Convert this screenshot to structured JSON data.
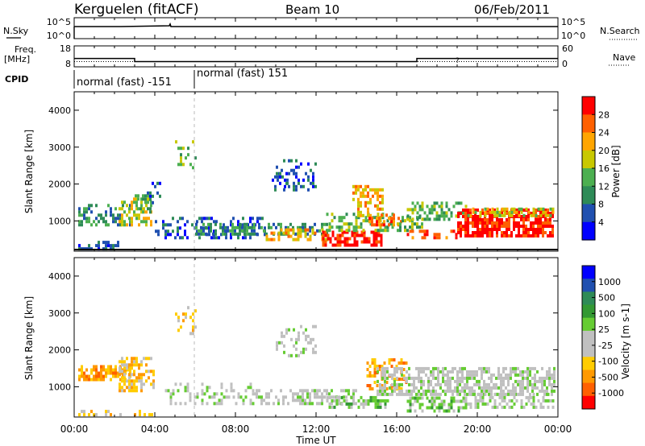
{
  "header": {
    "station": "Kerguelen (fitACF)",
    "beam": "Beam 10",
    "date": "06/Feb/2011"
  },
  "top_panels": {
    "nsky_label": "N.Sky",
    "nsearch_label": "N.Search",
    "freq_label": "Freq.",
    "freq_unit": "[MHz]",
    "nave_label": "Nave",
    "cpid_label": "CPID",
    "noise_ticks": [
      "10^5",
      "10^0"
    ],
    "freq_ticks": [
      "18",
      "8"
    ],
    "nave_ticks": [
      "60",
      "0"
    ],
    "cpid_segments": [
      "normal (fast) -151",
      "normal (fast) 151"
    ]
  },
  "colors": {
    "power_scale": [
      "#0000ff",
      "#2050b0",
      "#2e8b57",
      "#4caf50",
      "#c8c800",
      "#ffa500",
      "#ff6000",
      "#ff0000"
    ],
    "velocity_scale": [
      "#ff0000",
      "#ff6000",
      "#ff9900",
      "#ffcc00",
      "#c0c0c0",
      "#c0c0c0",
      "#66cc33",
      "#339933",
      "#2e8b57",
      "#2050b0",
      "#0000ff"
    ]
  },
  "chart_data": [
    {
      "type": "line",
      "panel": "noise",
      "series": [
        {
          "name": "N.Sky",
          "values": [
            1000,
            1000,
            1000,
            1000,
            1000,
            1000,
            1000
          ]
        },
        {
          "name": "N.Search",
          "values": [
            1000,
            1000,
            1000,
            1000,
            1000,
            1000,
            1000
          ]
        }
      ],
      "x": [
        "00:00",
        "04:00",
        "08:00",
        "12:00",
        "16:00",
        "20:00",
        "00:00"
      ],
      "ytick_labels": [
        "10^5",
        "10^0"
      ],
      "y2tick_labels": [
        "10^5",
        "10^0"
      ]
    },
    {
      "type": "line",
      "panel": "frequency",
      "series": [
        {
          "name": "Freq.",
          "points": [
            [
              0,
              12
            ],
            [
              3,
              12
            ],
            [
              3,
              10.5
            ],
            [
              17,
              10.5
            ],
            [
              17,
              12
            ],
            [
              24,
              12
            ]
          ]
        },
        {
          "name": "Nave",
          "points": [
            [
              0,
              15
            ],
            [
              24,
              15
            ]
          ]
        }
      ],
      "ylim": [
        8,
        18
      ],
      "y2lim": [
        0,
        60
      ]
    },
    {
      "type": "heatmap",
      "panel": "power",
      "ylabel": "Slant Range [km]",
      "colorbar_label": "Power [dB]",
      "colorbar_ticks": [
        "4",
        "8",
        "12",
        "16",
        "20",
        "24",
        "28"
      ],
      "yticks": [
        "1000",
        "2000",
        "3000",
        "4000"
      ],
      "xlim": [
        0,
        24
      ],
      "ylim": [
        180,
        4500
      ],
      "blobs": [
        {
          "t0": 0.2,
          "t1": 2.2,
          "r0": 200,
          "r1": 400,
          "level": 1,
          "d": 0.55
        },
        {
          "t0": 0.2,
          "t1": 2.8,
          "r0": 850,
          "r1": 1450,
          "level": 2,
          "d": 0.4
        },
        {
          "t0": 2.2,
          "t1": 3.8,
          "r0": 850,
          "r1": 1550,
          "level": 4,
          "d": 0.55
        },
        {
          "t0": 3.0,
          "t1": 3.8,
          "r0": 1200,
          "r1": 1700,
          "level": 3,
          "d": 0.45
        },
        {
          "t0": 3.6,
          "t1": 4.3,
          "r0": 1450,
          "r1": 2000,
          "level": 1,
          "d": 0.35
        },
        {
          "t0": 4.0,
          "t1": 9.5,
          "r0": 500,
          "r1": 1100,
          "level": 1,
          "d": 0.35
        },
        {
          "t0": 6.0,
          "t1": 12.5,
          "r0": 600,
          "r1": 900,
          "level": 2,
          "d": 0.55
        },
        {
          "t0": 9.5,
          "t1": 12.5,
          "r0": 450,
          "r1": 750,
          "level": 5,
          "d": 0.45
        },
        {
          "t0": 12.3,
          "t1": 15.2,
          "r0": 300,
          "r1": 700,
          "level": 7,
          "d": 0.7
        },
        {
          "t0": 12.5,
          "t1": 15.8,
          "r0": 700,
          "r1": 1150,
          "level": 3,
          "d": 0.45
        },
        {
          "t0": 13.8,
          "t1": 15.3,
          "r0": 1100,
          "r1": 1900,
          "level": 5,
          "d": 0.5
        },
        {
          "t0": 14.6,
          "t1": 16.2,
          "r0": 850,
          "r1": 1150,
          "level": 6,
          "d": 0.5
        },
        {
          "t0": 16.0,
          "t1": 17.5,
          "r0": 700,
          "r1": 1100,
          "level": 3,
          "d": 0.45
        },
        {
          "t0": 16.5,
          "t1": 19.0,
          "r0": 500,
          "r1": 750,
          "level": 6,
          "d": 0.5
        },
        {
          "t0": 16.5,
          "t1": 19.5,
          "r0": 1000,
          "r1": 1500,
          "level": 3,
          "d": 0.45
        },
        {
          "t0": 19.0,
          "t1": 23.8,
          "r0": 550,
          "r1": 1250,
          "level": 7,
          "d": 0.75
        },
        {
          "t0": 19.5,
          "t1": 23.8,
          "r0": 1100,
          "r1": 1350,
          "level": 4,
          "d": 0.55
        },
        {
          "t0": 10.0,
          "t1": 12.0,
          "r0": 1800,
          "r1": 2600,
          "level": 1,
          "d": 0.3
        },
        {
          "t0": 5.0,
          "t1": 6.0,
          "r0": 2400,
          "r1": 3100,
          "level": 3,
          "d": 0.2
        },
        {
          "t0": 9.8,
          "t1": 10.6,
          "r0": 1800,
          "r1": 2300,
          "level": 1,
          "d": 0.4
        }
      ]
    },
    {
      "type": "heatmap",
      "panel": "velocity",
      "ylabel": "Slant Range [km]",
      "xlabel": "Time UT",
      "colorbar_label": "Velocity [m s-1]",
      "colorbar_ticks": [
        "1000",
        "500",
        "100",
        "25",
        "-25",
        "-100",
        "-500",
        "-1000"
      ],
      "yticks": [
        "1000",
        "2000",
        "3000",
        "4000"
      ],
      "xticks": [
        "00:00",
        "04:00",
        "08:00",
        "12:00",
        "16:00",
        "20:00",
        "00:00"
      ],
      "xlim": [
        0,
        24
      ],
      "ylim": [
        180,
        4500
      ],
      "blobs": [
        {
          "t0": 0.2,
          "t1": 2.8,
          "r0": 1150,
          "r1": 1500,
          "level": 2,
          "d": 0.65
        },
        {
          "t0": 2.2,
          "t1": 4.0,
          "r0": 850,
          "r1": 1800,
          "level": 3,
          "d": 0.55
        },
        {
          "t0": 0.2,
          "t1": 4.0,
          "r0": 200,
          "r1": 350,
          "level": 3,
          "d": 0.35
        },
        {
          "t0": 4.5,
          "t1": 9.0,
          "r0": 500,
          "r1": 1100,
          "level": 5,
          "d": 0.3
        },
        {
          "t0": 9.0,
          "t1": 14.0,
          "r0": 500,
          "r1": 900,
          "level": 5,
          "d": 0.5
        },
        {
          "t0": 12.5,
          "t1": 15.5,
          "r0": 400,
          "r1": 700,
          "level": 6,
          "d": 0.5
        },
        {
          "t0": 14.5,
          "t1": 16.5,
          "r0": 900,
          "r1": 1700,
          "level": 2,
          "d": 0.45
        },
        {
          "t0": 16.5,
          "t1": 19.5,
          "r0": 300,
          "r1": 650,
          "level": 6,
          "d": 0.55
        },
        {
          "t0": 15.0,
          "t1": 23.8,
          "r0": 750,
          "r1": 1500,
          "level": 5,
          "d": 0.65
        },
        {
          "t0": 19.5,
          "t1": 23.8,
          "r0": 400,
          "r1": 800,
          "level": 5,
          "d": 0.4
        },
        {
          "t0": 10.0,
          "t1": 12.0,
          "r0": 1800,
          "r1": 2600,
          "level": 5,
          "d": 0.3
        },
        {
          "t0": 5.0,
          "t1": 6.0,
          "r0": 2400,
          "r1": 3100,
          "level": 3,
          "d": 0.2
        }
      ]
    }
  ]
}
